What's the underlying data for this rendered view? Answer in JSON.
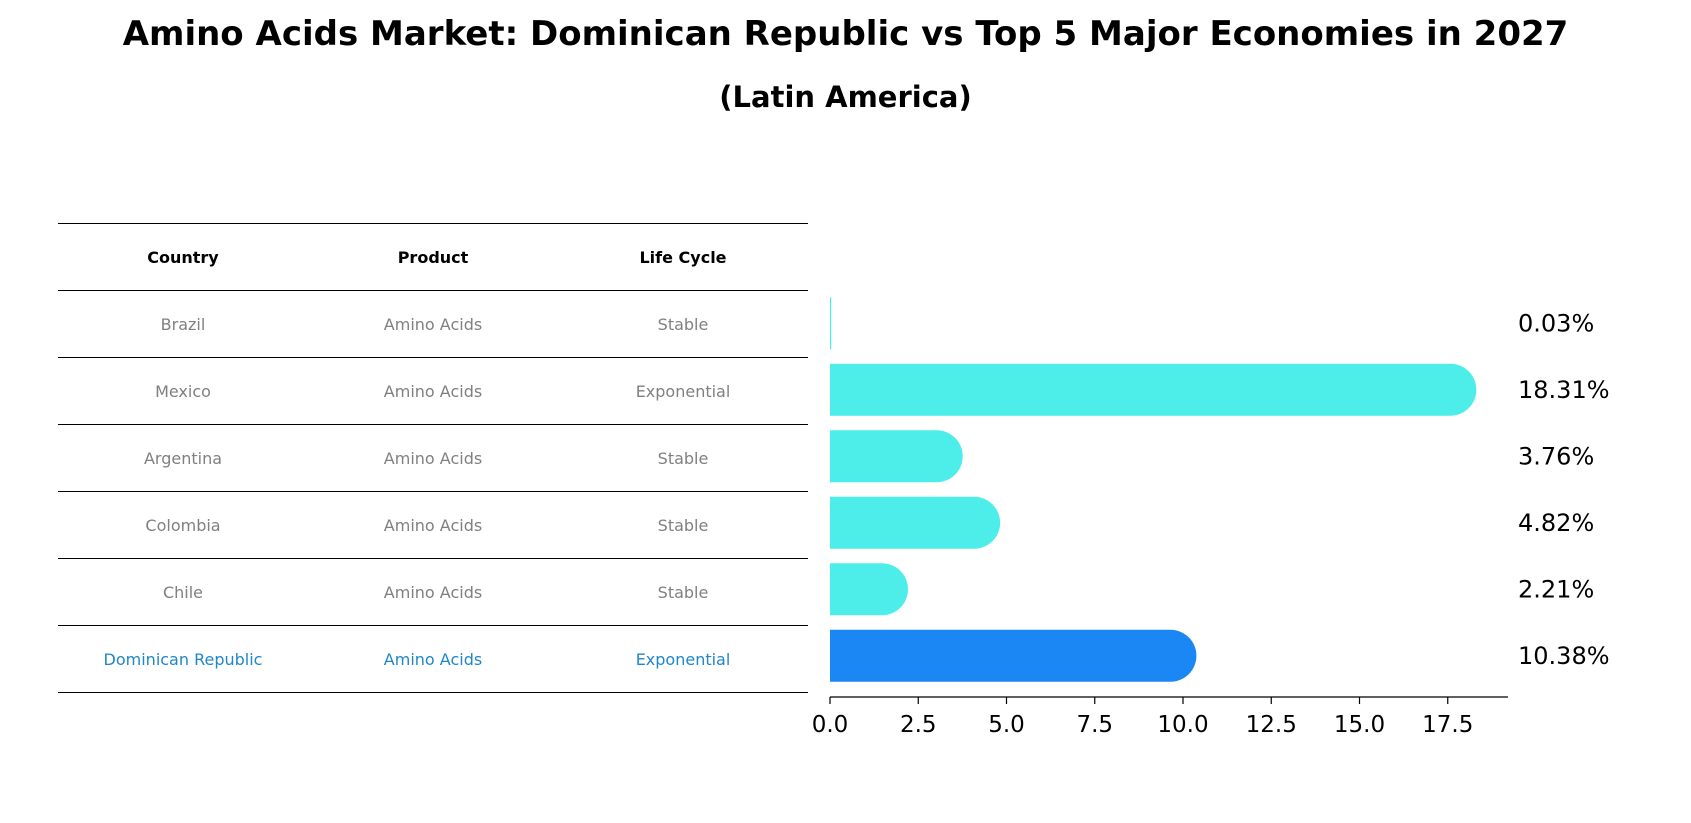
{
  "title": "Amino Acids Market: Dominican Republic vs Top 5 Major Economies in 2027",
  "subtitle": "(Latin America)",
  "table": {
    "headers": [
      "Country",
      "Product",
      "Life Cycle"
    ],
    "rows": [
      {
        "country": "Brazil",
        "product": "Amino Acids",
        "life_cycle": "Stable"
      },
      {
        "country": "Mexico",
        "product": "Amino Acids",
        "life_cycle": "Exponential"
      },
      {
        "country": "Argentina",
        "product": "Amino Acids",
        "life_cycle": "Stable"
      },
      {
        "country": "Colombia",
        "product": "Amino Acids",
        "life_cycle": "Stable"
      },
      {
        "country": "Chile",
        "product": "Amino Acids",
        "life_cycle": "Stable"
      },
      {
        "country": "Dominican Republic",
        "product": "Amino Acids",
        "life_cycle": "Exponential"
      }
    ]
  },
  "chart_data": {
    "type": "bar",
    "orientation": "horizontal",
    "categories": [
      "Brazil",
      "Mexico",
      "Argentina",
      "Colombia",
      "Chile",
      "Dominican Republic"
    ],
    "values": [
      0.03,
      18.31,
      3.76,
      4.82,
      2.21,
      10.38
    ],
    "value_labels": [
      "0.03%",
      "18.31%",
      "3.76%",
      "4.82%",
      "2.21%",
      "10.38%"
    ],
    "xlim": [
      0,
      19.2
    ],
    "xticks": [
      0.0,
      2.5,
      5.0,
      7.5,
      10.0,
      12.5,
      15.0,
      17.5
    ],
    "xtick_labels": [
      "0.0",
      "2.5",
      "5.0",
      "7.5",
      "10.0",
      "12.5",
      "15.0",
      "17.5"
    ],
    "xlabel": "",
    "ylabel": "",
    "highlight": "Dominican Republic",
    "colors": {
      "default": "#4deeea",
      "highlight": "#1a87f5",
      "highlight_text": "#1f87c9",
      "muted_text": "#808080"
    }
  }
}
